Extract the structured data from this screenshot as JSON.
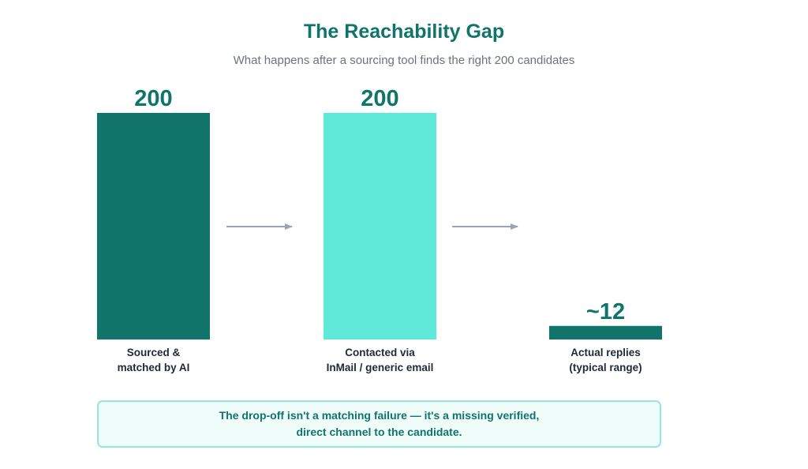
{
  "title": "The Reachability Gap",
  "subtitle": "What happens after a sourcing tool finds the right 200 candidates",
  "colors": {
    "dark_teal": "#11756b",
    "light_teal": "#5ee9d8",
    "arrow": "#9aa4b5",
    "label": "#1f2937",
    "title": "#0f756b"
  },
  "chart_data": {
    "type": "bar",
    "categories": [
      [
        "Sourced &",
        "matched by AI"
      ],
      [
        "Contacted via",
        "InMail / generic email"
      ],
      [
        "Actual replies",
        "(typical range)"
      ]
    ],
    "values": [
      200,
      200,
      12
    ],
    "value_labels": [
      "200",
      "200",
      "~12"
    ],
    "bar_colors": [
      "#11756b",
      "#5ee9d8",
      "#11756b"
    ],
    "ylim": [
      0,
      200
    ],
    "grid": false,
    "axes_visible": false,
    "arrows_between_bars": true
  },
  "callout": {
    "line1": "The drop-off isn't a matching failure — it's a missing verified,",
    "line2": "direct channel to the candidate."
  }
}
